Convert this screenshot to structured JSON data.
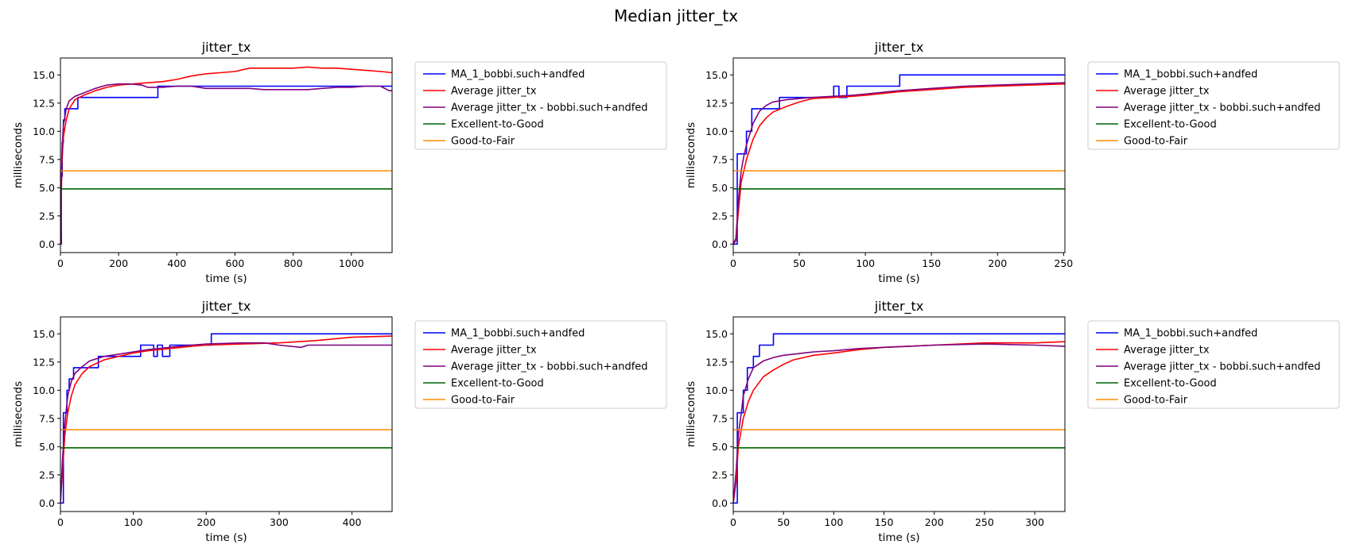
{
  "figure": {
    "suptitle": "Median jitter_tx"
  },
  "colors": {
    "ma": "#0000ff",
    "avg": "#ff0000",
    "avg_sub": "#800080",
    "excellent_to_good": "#006400",
    "good_to_fair": "#ff8c00"
  },
  "chart_data": [
    {
      "type": "line",
      "title": "jitter_tx",
      "xlabel": "time (s)",
      "ylabel": "milliseconds",
      "xlim": [
        0,
        1140
      ],
      "ylim": [
        -0.75,
        16.5
      ],
      "xticks": [
        0,
        200,
        400,
        600,
        800,
        1000
      ],
      "yticks": [
        0.0,
        2.5,
        5.0,
        7.5,
        10.0,
        12.5,
        15.0
      ],
      "grid": false,
      "legend_position": "outside-right",
      "series": [
        {
          "name": "MA_1_bobbi.such+andfed",
          "color": "#0000ff",
          "step": true,
          "x": [
            0,
            3,
            6,
            10,
            15,
            20,
            30,
            40,
            60,
            330,
            335,
            400,
            1130,
            1140
          ],
          "y": [
            0,
            6,
            9,
            11,
            12,
            12,
            12,
            12,
            13,
            13,
            14,
            14,
            14,
            14
          ]
        },
        {
          "name": "Average jitter_tx",
          "color": "#ff0000",
          "x": [
            0,
            5,
            10,
            20,
            30,
            50,
            80,
            120,
            160,
            200,
            250,
            300,
            350,
            400,
            450,
            500,
            550,
            600,
            650,
            700,
            750,
            800,
            850,
            900,
            950,
            1000,
            1050,
            1100,
            1140
          ],
          "y": [
            0,
            7,
            9.5,
            11,
            12,
            12.8,
            13.2,
            13.6,
            13.9,
            14.1,
            14.2,
            14.3,
            14.4,
            14.6,
            14.9,
            15.1,
            15.2,
            15.3,
            15.6,
            15.6,
            15.6,
            15.6,
            15.7,
            15.6,
            15.6,
            15.5,
            15.4,
            15.3,
            15.2
          ]
        },
        {
          "name": "Average jitter_tx - bobbi.such+andfed",
          "color": "#800080",
          "x": [
            0,
            5,
            10,
            20,
            30,
            50,
            80,
            120,
            160,
            200,
            240,
            280,
            300,
            350,
            400,
            450,
            500,
            550,
            600,
            650,
            700,
            750,
            800,
            850,
            900,
            950,
            1000,
            1050,
            1100,
            1130,
            1140
          ],
          "y": [
            0,
            8,
            10.5,
            12,
            12.7,
            13.1,
            13.4,
            13.8,
            14.1,
            14.2,
            14.2,
            14.1,
            13.9,
            13.9,
            14.0,
            14.0,
            13.8,
            13.8,
            13.8,
            13.8,
            13.7,
            13.7,
            13.7,
            13.7,
            13.8,
            13.9,
            13.9,
            14.0,
            14.0,
            13.6,
            13.6
          ]
        },
        {
          "name": "Excellent-to-Good",
          "color": "#006400",
          "x": [
            0,
            1140
          ],
          "y": [
            4.9,
            4.9
          ]
        },
        {
          "name": "Good-to-Fair",
          "color": "#ff8c00",
          "x": [
            0,
            1140
          ],
          "y": [
            6.5,
            6.5
          ]
        }
      ]
    },
    {
      "type": "line",
      "title": "jitter_tx",
      "xlabel": "time (s)",
      "ylabel": "milliseconds",
      "xlim": [
        0,
        251
      ],
      "ylim": [
        -0.75,
        16.5
      ],
      "xticks": [
        0,
        50,
        100,
        150,
        200,
        250
      ],
      "yticks": [
        0.0,
        2.5,
        5.0,
        7.5,
        10.0,
        12.5,
        15.0
      ],
      "grid": false,
      "legend_position": "outside-right",
      "series": [
        {
          "name": "MA_1_bobbi.such+andfed",
          "color": "#0000ff",
          "step": true,
          "x": [
            0,
            3,
            5,
            10,
            14,
            35,
            76,
            80,
            86,
            126,
            251
          ],
          "y": [
            0,
            8,
            8,
            10,
            12,
            13,
            14,
            13,
            14,
            15,
            15
          ]
        },
        {
          "name": "Average jitter_tx",
          "color": "#ff0000",
          "x": [
            0,
            2,
            4,
            6,
            8,
            10,
            15,
            20,
            25,
            30,
            40,
            50,
            60,
            75,
            90,
            100,
            125,
            150,
            175,
            200,
            225,
            251
          ],
          "y": [
            0,
            0.3,
            3,
            5.5,
            6.5,
            7.5,
            9.3,
            10.5,
            11.2,
            11.7,
            12.2,
            12.6,
            12.9,
            13.0,
            13.1,
            13.2,
            13.5,
            13.7,
            13.9,
            14.0,
            14.1,
            14.2
          ]
        },
        {
          "name": "Average jitter_tx - bobbi.such+andfed",
          "color": "#800080",
          "x": [
            0,
            2,
            4,
            6,
            8,
            10,
            15,
            20,
            25,
            30,
            40,
            50,
            60,
            75,
            90,
            100,
            125,
            150,
            175,
            200,
            225,
            251
          ],
          "y": [
            0,
            0.5,
            4,
            6.5,
            7.8,
            8.8,
            10.7,
            11.8,
            12.3,
            12.6,
            12.8,
            12.9,
            13.0,
            13.1,
            13.2,
            13.3,
            13.6,
            13.8,
            14.0,
            14.1,
            14.2,
            14.3
          ]
        },
        {
          "name": "Excellent-to-Good",
          "color": "#006400",
          "x": [
            0,
            251
          ],
          "y": [
            4.9,
            4.9
          ]
        },
        {
          "name": "Good-to-Fair",
          "color": "#ff8c00",
          "x": [
            0,
            251
          ],
          "y": [
            6.5,
            6.5
          ]
        }
      ]
    },
    {
      "type": "line",
      "title": "jitter_tx",
      "xlabel": "time (s)",
      "ylabel": "milliseconds",
      "xlim": [
        0,
        455
      ],
      "ylim": [
        -0.75,
        16.5
      ],
      "xticks": [
        0,
        100,
        200,
        300,
        400
      ],
      "yticks": [
        0.0,
        2.5,
        5.0,
        7.5,
        10.0,
        12.5,
        15.0
      ],
      "grid": false,
      "legend_position": "outside-right",
      "series": [
        {
          "name": "MA_1_bobbi.such+andfed",
          "color": "#0000ff",
          "step": true,
          "x": [
            0,
            4,
            6,
            9,
            12,
            18,
            52,
            110,
            128,
            133,
            140,
            150,
            158,
            207,
            455
          ],
          "y": [
            0,
            8,
            8,
            10,
            11,
            12,
            13,
            14,
            13,
            14,
            13,
            14,
            14,
            15,
            15
          ]
        },
        {
          "name": "Average jitter_tx",
          "color": "#ff0000",
          "x": [
            0,
            3,
            6,
            10,
            15,
            20,
            30,
            40,
            60,
            80,
            100,
            120,
            150,
            180,
            200,
            250,
            300,
            350,
            400,
            455
          ],
          "y": [
            0,
            3,
            6,
            8,
            9.5,
            10.5,
            11.5,
            12.1,
            12.7,
            13.0,
            13.3,
            13.5,
            13.7,
            13.9,
            14.0,
            14.1,
            14.2,
            14.4,
            14.7,
            14.8
          ]
        },
        {
          "name": "Average jitter_tx - bobbi.such+andfed",
          "color": "#800080",
          "x": [
            0,
            3,
            6,
            10,
            15,
            20,
            30,
            40,
            60,
            80,
            100,
            120,
            150,
            180,
            200,
            250,
            280,
            300,
            330,
            340,
            400,
            455
          ],
          "y": [
            0,
            4,
            7,
            9.5,
            10.8,
            11.5,
            12.1,
            12.6,
            13.0,
            13.2,
            13.4,
            13.6,
            13.8,
            14.0,
            14.1,
            14.2,
            14.2,
            14.0,
            13.8,
            14.0,
            14.0,
            14.0
          ]
        },
        {
          "name": "Excellent-to-Good",
          "color": "#006400",
          "x": [
            0,
            455
          ],
          "y": [
            4.9,
            4.9
          ]
        },
        {
          "name": "Good-to-Fair",
          "color": "#ff8c00",
          "x": [
            0,
            455
          ],
          "y": [
            6.5,
            6.5
          ]
        }
      ]
    },
    {
      "type": "line",
      "title": "jitter_tx",
      "xlabel": "time (s)",
      "ylabel": "milliseconds",
      "xlim": [
        0,
        330
      ],
      "ylim": [
        -0.75,
        16.5
      ],
      "xticks": [
        0,
        50,
        100,
        150,
        200,
        250,
        300
      ],
      "yticks": [
        0.0,
        2.5,
        5.0,
        7.5,
        10.0,
        12.5,
        15.0
      ],
      "grid": false,
      "legend_position": "outside-right",
      "series": [
        {
          "name": "MA_1_bobbi.such+andfed",
          "color": "#0000ff",
          "step": true,
          "x": [
            0,
            4,
            7,
            10,
            14,
            20,
            26,
            35,
            40,
            330
          ],
          "y": [
            0,
            8,
            8,
            10,
            12,
            13,
            14,
            14,
            15,
            15
          ]
        },
        {
          "name": "Average jitter_tx",
          "color": "#ff0000",
          "x": [
            0,
            3,
            5,
            8,
            10,
            15,
            20,
            30,
            40,
            50,
            60,
            80,
            100,
            125,
            150,
            175,
            200,
            250,
            300,
            330
          ],
          "y": [
            0,
            2,
            5,
            6.5,
            7.5,
            9,
            10,
            11.2,
            11.8,
            12.3,
            12.7,
            13.1,
            13.3,
            13.6,
            13.8,
            13.9,
            14.0,
            14.2,
            14.2,
            14.3
          ]
        },
        {
          "name": "Average jitter_tx - bobbi.such+andfed",
          "color": "#800080",
          "x": [
            0,
            3,
            5,
            8,
            10,
            15,
            20,
            30,
            40,
            50,
            60,
            80,
            100,
            125,
            150,
            175,
            200,
            250,
            300,
            330
          ],
          "y": [
            0,
            3,
            6,
            8,
            9.5,
            11,
            12,
            12.6,
            12.9,
            13.1,
            13.2,
            13.4,
            13.5,
            13.7,
            13.8,
            13.9,
            14.0,
            14.1,
            14.0,
            13.9
          ]
        },
        {
          "name": "Excellent-to-Good",
          "color": "#006400",
          "x": [
            0,
            330
          ],
          "y": [
            4.9,
            4.9
          ]
        },
        {
          "name": "Good-to-Fair",
          "color": "#ff8c00",
          "x": [
            0,
            330
          ],
          "y": [
            6.5,
            6.5
          ]
        }
      ]
    }
  ]
}
